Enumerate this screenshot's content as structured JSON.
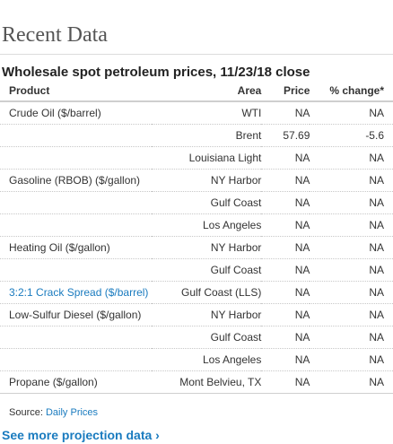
{
  "section_title": "Recent Data",
  "table_title": "Wholesale spot petroleum prices, 11/23/18 close",
  "headers": {
    "product": "Product",
    "area": "Area",
    "price": "Price",
    "change": "% change*"
  },
  "rows": [
    {
      "product": "Crude Oil ($/barrel)",
      "area": "WTI",
      "price": "NA",
      "change": "NA"
    },
    {
      "product": "",
      "area": "Brent",
      "price": "57.69",
      "change": "-5.6"
    },
    {
      "product": "",
      "area": "Louisiana Light",
      "price": "NA",
      "change": "NA"
    },
    {
      "product": "Gasoline (RBOB) ($/gallon)",
      "area": "NY Harbor",
      "price": "NA",
      "change": "NA"
    },
    {
      "product": "",
      "area": "Gulf Coast",
      "price": "NA",
      "change": "NA"
    },
    {
      "product": "",
      "area": "Los Angeles",
      "price": "NA",
      "change": "NA"
    },
    {
      "product": "Heating Oil ($/gallon)",
      "area": "NY Harbor",
      "price": "NA",
      "change": "NA"
    },
    {
      "product": "",
      "area": "Gulf Coast",
      "price": "NA",
      "change": "NA"
    },
    {
      "product": "3:2:1 Crack Spread ($/barrel)",
      "area": "Gulf Coast (LLS)",
      "price": "NA",
      "change": "NA"
    },
    {
      "product": "Low-Sulfur Diesel ($/gallon)",
      "area": "NY Harbor",
      "price": "NA",
      "change": "NA"
    },
    {
      "product": "",
      "area": "Gulf Coast",
      "price": "NA",
      "change": "NA"
    },
    {
      "product": "",
      "area": "Los Angeles",
      "price": "NA",
      "change": "NA"
    },
    {
      "product": "Propane ($/gallon)",
      "area": "Mont Belvieu, TX",
      "price": "NA",
      "change": "NA"
    }
  ],
  "source": {
    "label": "Source:",
    "link": "Daily Prices"
  },
  "more_link": "See more projection data ›"
}
